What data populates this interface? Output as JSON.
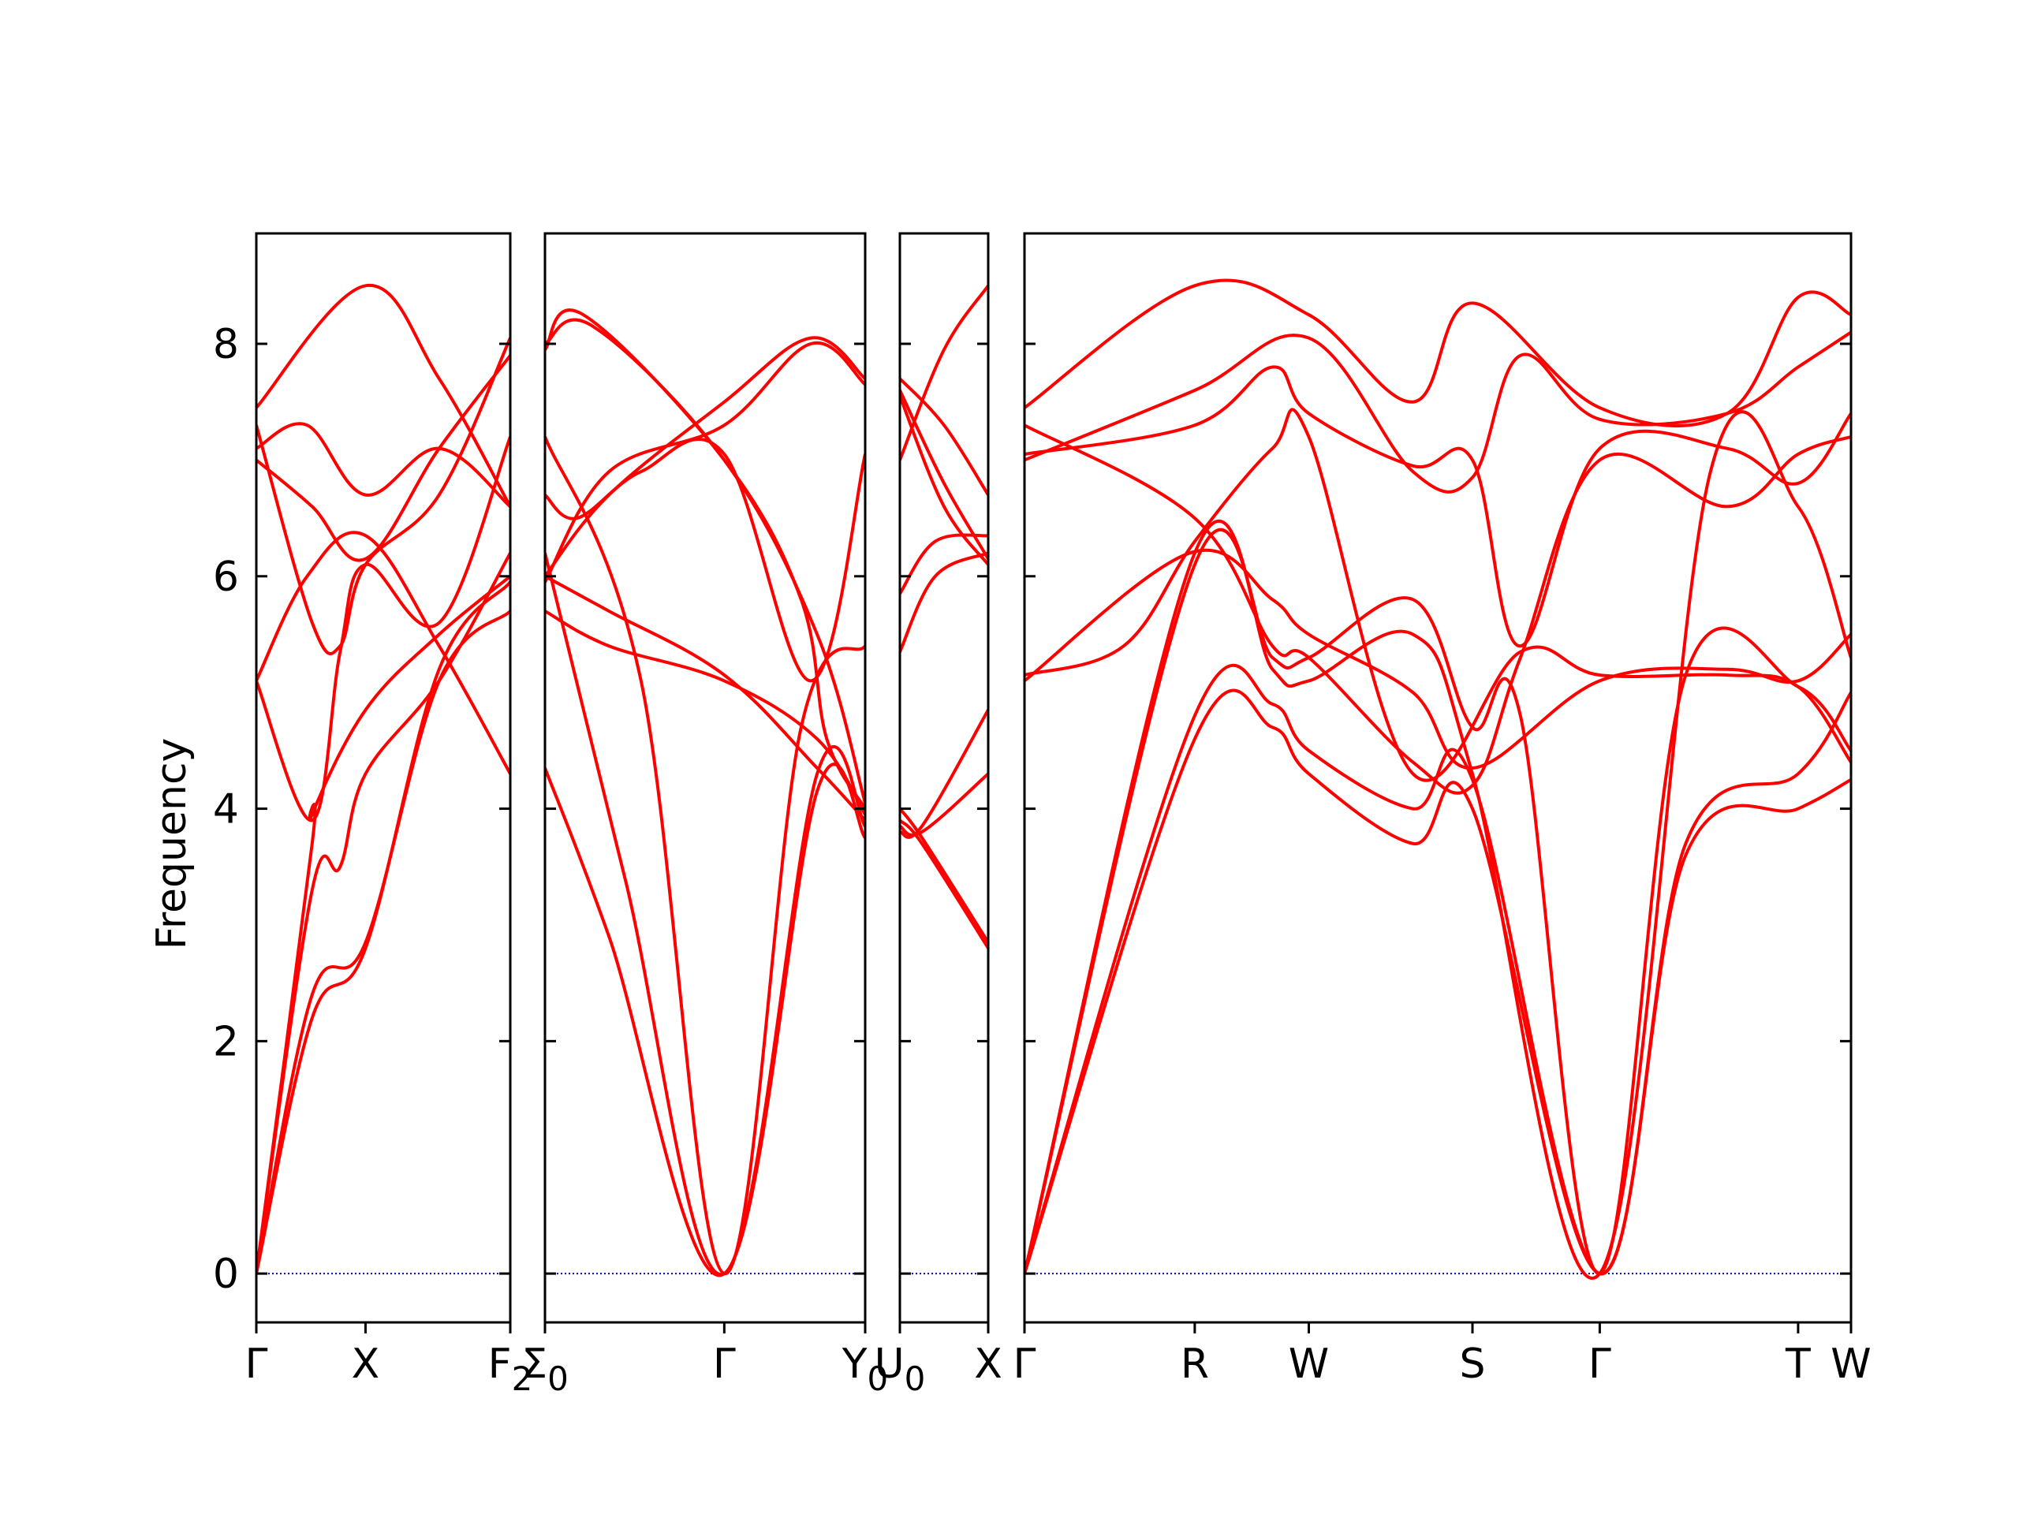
{
  "chart_data": {
    "type": "line",
    "title": "",
    "ylabel": "Frequency",
    "xlabel": "",
    "ylim": [
      -0.42,
      8.95
    ],
    "yticks": [
      0,
      2,
      4,
      6,
      8
    ],
    "grid": false,
    "colors": {
      "bands": "#ff0000",
      "zero_line": "#0000cc",
      "axes": "#000000"
    },
    "panels": [
      {
        "x_range": [
          0,
          1
        ],
        "ticks": [
          {
            "pos": 0,
            "label": "Γ"
          },
          {
            "pos": 0.43,
            "label": "X"
          },
          {
            "pos": 1,
            "label": "F",
            "sub": "2"
          }
        ],
        "bands": [
          [
            [
              0,
              0
            ],
            [
              0.22,
              2.2
            ],
            [
              0.43,
              2.8
            ],
            [
              0.72,
              5.2
            ],
            [
              1,
              5.95
            ]
          ],
          [
            [
              0,
              0
            ],
            [
              0.22,
              2.4
            ],
            [
              0.43,
              2.85
            ],
            [
              0.72,
              5.1
            ],
            [
              1,
              5.7
            ]
          ],
          [
            [
              0,
              0
            ],
            [
              0.22,
              3.3
            ],
            [
              0.33,
              3.5
            ],
            [
              0.43,
              4.3
            ],
            [
              0.72,
              5.1
            ],
            [
              1,
              6.2
            ]
          ],
          [
            [
              0,
              0
            ],
            [
              0.22,
              3.7
            ],
            [
              0.22,
              3.95
            ],
            [
              0.43,
              4.85
            ],
            [
              0.72,
              5.5
            ],
            [
              1,
              6.0
            ]
          ],
          [
            [
              0,
              5.1
            ],
            [
              0.22,
              3.9
            ],
            [
              0.33,
              5.35
            ],
            [
              0.43,
              6.1
            ],
            [
              0.72,
              5.6
            ],
            [
              1,
              7.2
            ]
          ],
          [
            [
              0,
              5.1
            ],
            [
              0.2,
              6.0
            ],
            [
              0.43,
              6.35
            ],
            [
              0.72,
              5.4
            ],
            [
              1,
              4.3
            ]
          ],
          [
            [
              0,
              7.3
            ],
            [
              0.22,
              5.6
            ],
            [
              0.33,
              5.4
            ],
            [
              0.43,
              6.1
            ],
            [
              0.72,
              6.7
            ],
            [
              1,
              8.05
            ]
          ],
          [
            [
              0,
              7.0
            ],
            [
              0.22,
              6.6
            ],
            [
              0.43,
              6.15
            ],
            [
              0.72,
              7.1
            ],
            [
              1,
              7.9
            ]
          ],
          [
            [
              0,
              7.1
            ],
            [
              0.2,
              7.3
            ],
            [
              0.43,
              6.7
            ],
            [
              0.72,
              7.1
            ],
            [
              1,
              6.6
            ]
          ],
          [
            [
              0,
              7.45
            ],
            [
              0.43,
              8.5
            ],
            [
              0.72,
              7.7
            ],
            [
              1,
              6.6
            ]
          ]
        ]
      },
      {
        "x_range": [
          0,
          1
        ],
        "ticks": [
          {
            "pos": 0,
            "label": "Σ",
            "sub": "0"
          },
          {
            "pos": 0.56,
            "label": "Γ"
          },
          {
            "pos": 1,
            "label": "Y",
            "sub": "0"
          }
        ],
        "bands": [
          [
            [
              0,
              4.35
            ],
            [
              0.2,
              2.9
            ],
            [
              0.56,
              0
            ],
            [
              0.85,
              4.15
            ],
            [
              1,
              3.75
            ]
          ],
          [
            [
              0,
              6.2
            ],
            [
              0.25,
              3.4
            ],
            [
              0.56,
              0
            ],
            [
              0.85,
              4.3
            ],
            [
              1,
              3.85
            ]
          ],
          [
            [
              0,
              7.2
            ],
            [
              0.3,
              5.1
            ],
            [
              0.56,
              0
            ],
            [
              0.8,
              4.7
            ],
            [
              1,
              5.4
            ]
          ],
          [
            [
              0,
              5.7
            ],
            [
              0.2,
              5.4
            ],
            [
              0.56,
              5.1
            ],
            [
              0.85,
              4.6
            ],
            [
              1,
              3.95
            ]
          ],
          [
            [
              0,
              6.0
            ],
            [
              0.2,
              5.7
            ],
            [
              0.56,
              5.15
            ],
            [
              0.85,
              4.35
            ],
            [
              1,
              3.9
            ]
          ],
          [
            [
              0,
              6.7
            ],
            [
              0.1,
              6.5
            ],
            [
              0.3,
              6.9
            ],
            [
              0.56,
              7.05
            ],
            [
              0.83,
              5.1
            ],
            [
              1,
              7.05
            ]
          ],
          [
            [
              0,
              6.0
            ],
            [
              0.2,
              6.7
            ],
            [
              0.56,
              7.5
            ],
            [
              0.83,
              8.05
            ],
            [
              1,
              7.7
            ]
          ],
          [
            [
              0,
              5.95
            ],
            [
              0.2,
              6.9
            ],
            [
              0.56,
              7.3
            ],
            [
              0.83,
              8.0
            ],
            [
              1,
              7.65
            ]
          ],
          [
            [
              0,
              7.95
            ],
            [
              0.12,
              8.25
            ],
            [
              0.56,
              7.0
            ],
            [
              0.8,
              5.8
            ],
            [
              0.88,
              4.6
            ],
            [
              1,
              4.0
            ]
          ],
          [
            [
              0,
              8.0
            ],
            [
              0.15,
              8.15
            ],
            [
              0.56,
              7.0
            ],
            [
              0.85,
              5.5
            ],
            [
              1,
              4.05
            ]
          ]
        ]
      },
      {
        "x_range": [
          0,
          1
        ],
        "ticks": [
          {
            "pos": 0,
            "label": "U",
            "sub": "0"
          },
          {
            "pos": 1,
            "label": "X"
          }
        ],
        "bands": [
          [
            [
              0,
              3.9
            ],
            [
              0.25,
              3.7
            ],
            [
              1,
              2.8
            ]
          ],
          [
            [
              0,
              4.0
            ],
            [
              0.25,
              3.75
            ],
            [
              1,
              2.85
            ]
          ],
          [
            [
              0,
              3.85
            ],
            [
              0.25,
              3.8
            ],
            [
              1,
              4.3
            ]
          ],
          [
            [
              0,
              3.8
            ],
            [
              0.25,
              3.85
            ],
            [
              1,
              4.85
            ]
          ],
          [
            [
              0,
              5.35
            ],
            [
              0.4,
              6.0
            ],
            [
              1,
              6.2
            ]
          ],
          [
            [
              0,
              5.85
            ],
            [
              0.4,
              6.3
            ],
            [
              1,
              6.35
            ]
          ],
          [
            [
              0,
              7.6
            ],
            [
              0.5,
              6.8
            ],
            [
              1,
              6.15
            ]
          ],
          [
            [
              0,
              7.7
            ],
            [
              0.5,
              7.3
            ],
            [
              1,
              6.7
            ]
          ],
          [
            [
              0,
              7.0
            ],
            [
              0.5,
              7.95
            ],
            [
              1,
              8.5
            ]
          ],
          [
            [
              0,
              7.55
            ],
            [
              0.5,
              6.6
            ],
            [
              1,
              6.1
            ]
          ]
        ]
      },
      {
        "x_range": [
          0,
          1
        ],
        "ticks": [
          {
            "pos": 0,
            "label": "Γ"
          },
          {
            "pos": 0.206,
            "label": "R"
          },
          {
            "pos": 0.344,
            "label": "W"
          },
          {
            "pos": 0.542,
            "label": "S"
          },
          {
            "pos": 0.696,
            "label": "Γ"
          },
          {
            "pos": 0.936,
            "label": "T"
          },
          {
            "pos": 1,
            "label": "W"
          }
        ],
        "bands": [
          [
            [
              0,
              0
            ],
            [
              0.206,
              4.6
            ],
            [
              0.3,
              4.7
            ],
            [
              0.344,
              4.3
            ],
            [
              0.47,
              3.7
            ],
            [
              0.542,
              4.0
            ],
            [
              0.696,
              0
            ],
            [
              0.8,
              3.6
            ],
            [
              0.936,
              4.0
            ],
            [
              1,
              4.25
            ]
          ],
          [
            [
              0,
              0
            ],
            [
              0.206,
              4.8
            ],
            [
              0.3,
              4.9
            ],
            [
              0.344,
              4.5
            ],
            [
              0.47,
              4.0
            ],
            [
              0.542,
              4.25
            ],
            [
              0.696,
              0
            ],
            [
              0.8,
              3.7
            ],
            [
              0.936,
              4.3
            ],
            [
              1,
              5.0
            ]
          ],
          [
            [
              0,
              0
            ],
            [
              0.206,
              6.1
            ],
            [
              0.3,
              5.3
            ],
            [
              0.344,
              5.3
            ],
            [
              0.47,
              5.8
            ],
            [
              0.542,
              4.7
            ],
            [
              0.6,
              4.8
            ],
            [
              0.696,
              0
            ],
            [
              0.8,
              5.15
            ],
            [
              0.936,
              5.05
            ],
            [
              1,
              4.5
            ]
          ],
          [
            [
              0,
              0
            ],
            [
              0.206,
              6.2
            ],
            [
              0.3,
              5.2
            ],
            [
              0.344,
              5.1
            ],
            [
              0.47,
              5.5
            ],
            [
              0.542,
              4.3
            ],
            [
              0.696,
              0
            ],
            [
              0.83,
              6.9
            ],
            [
              0.936,
              6.6
            ],
            [
              1,
              5.3
            ]
          ],
          [
            [
              0,
              5.1
            ],
            [
              0.2,
              6.2
            ],
            [
              0.3,
              5.8
            ],
            [
              0.344,
              5.5
            ],
            [
              0.47,
              5.0
            ],
            [
              0.542,
              4.35
            ],
            [
              0.696,
              5.1
            ],
            [
              0.85,
              5.2
            ],
            [
              0.936,
              5.1
            ],
            [
              1,
              5.5
            ]
          ],
          [
            [
              0,
              5.15
            ],
            [
              0.12,
              5.4
            ],
            [
              0.206,
              6.3
            ],
            [
              0.3,
              7.1
            ],
            [
              0.344,
              7.2
            ],
            [
              0.47,
              4.3
            ],
            [
              0.6,
              5.35
            ],
            [
              0.696,
              5.15
            ],
            [
              0.85,
              5.15
            ],
            [
              0.936,
              5.05
            ],
            [
              1,
              4.4
            ]
          ],
          [
            [
              0,
              7.3
            ],
            [
              0.206,
              6.5
            ],
            [
              0.3,
              5.4
            ],
            [
              0.344,
              5.3
            ],
            [
              0.47,
              4.4
            ],
            [
              0.542,
              4.2
            ],
            [
              0.6,
              5.3
            ],
            [
              0.696,
              7.0
            ],
            [
              0.85,
              6.6
            ],
            [
              0.936,
              7.05
            ],
            [
              1,
              7.2
            ]
          ],
          [
            [
              0,
              7.05
            ],
            [
              0.206,
              7.3
            ],
            [
              0.3,
              7.8
            ],
            [
              0.344,
              7.4
            ],
            [
              0.47,
              6.95
            ],
            [
              0.542,
              7.0
            ],
            [
              0.6,
              5.4
            ],
            [
              0.696,
              7.1
            ],
            [
              0.85,
              7.1
            ],
            [
              0.936,
              6.8
            ],
            [
              1,
              7.4
            ]
          ],
          [
            [
              0,
              7.0
            ],
            [
              0.206,
              7.6
            ],
            [
              0.344,
              8.05
            ],
            [
              0.47,
              6.9
            ],
            [
              0.542,
              6.85
            ],
            [
              0.6,
              7.9
            ],
            [
              0.696,
              7.35
            ],
            [
              0.85,
              7.4
            ],
            [
              0.936,
              7.8
            ],
            [
              1,
              8.1
            ]
          ],
          [
            [
              0,
              7.45
            ],
            [
              0.206,
              8.5
            ],
            [
              0.344,
              8.25
            ],
            [
              0.47,
              7.5
            ],
            [
              0.542,
              8.35
            ],
            [
              0.696,
              7.45
            ],
            [
              0.85,
              7.4
            ],
            [
              0.936,
              8.4
            ],
            [
              1,
              8.25
            ]
          ]
        ]
      }
    ]
  }
}
